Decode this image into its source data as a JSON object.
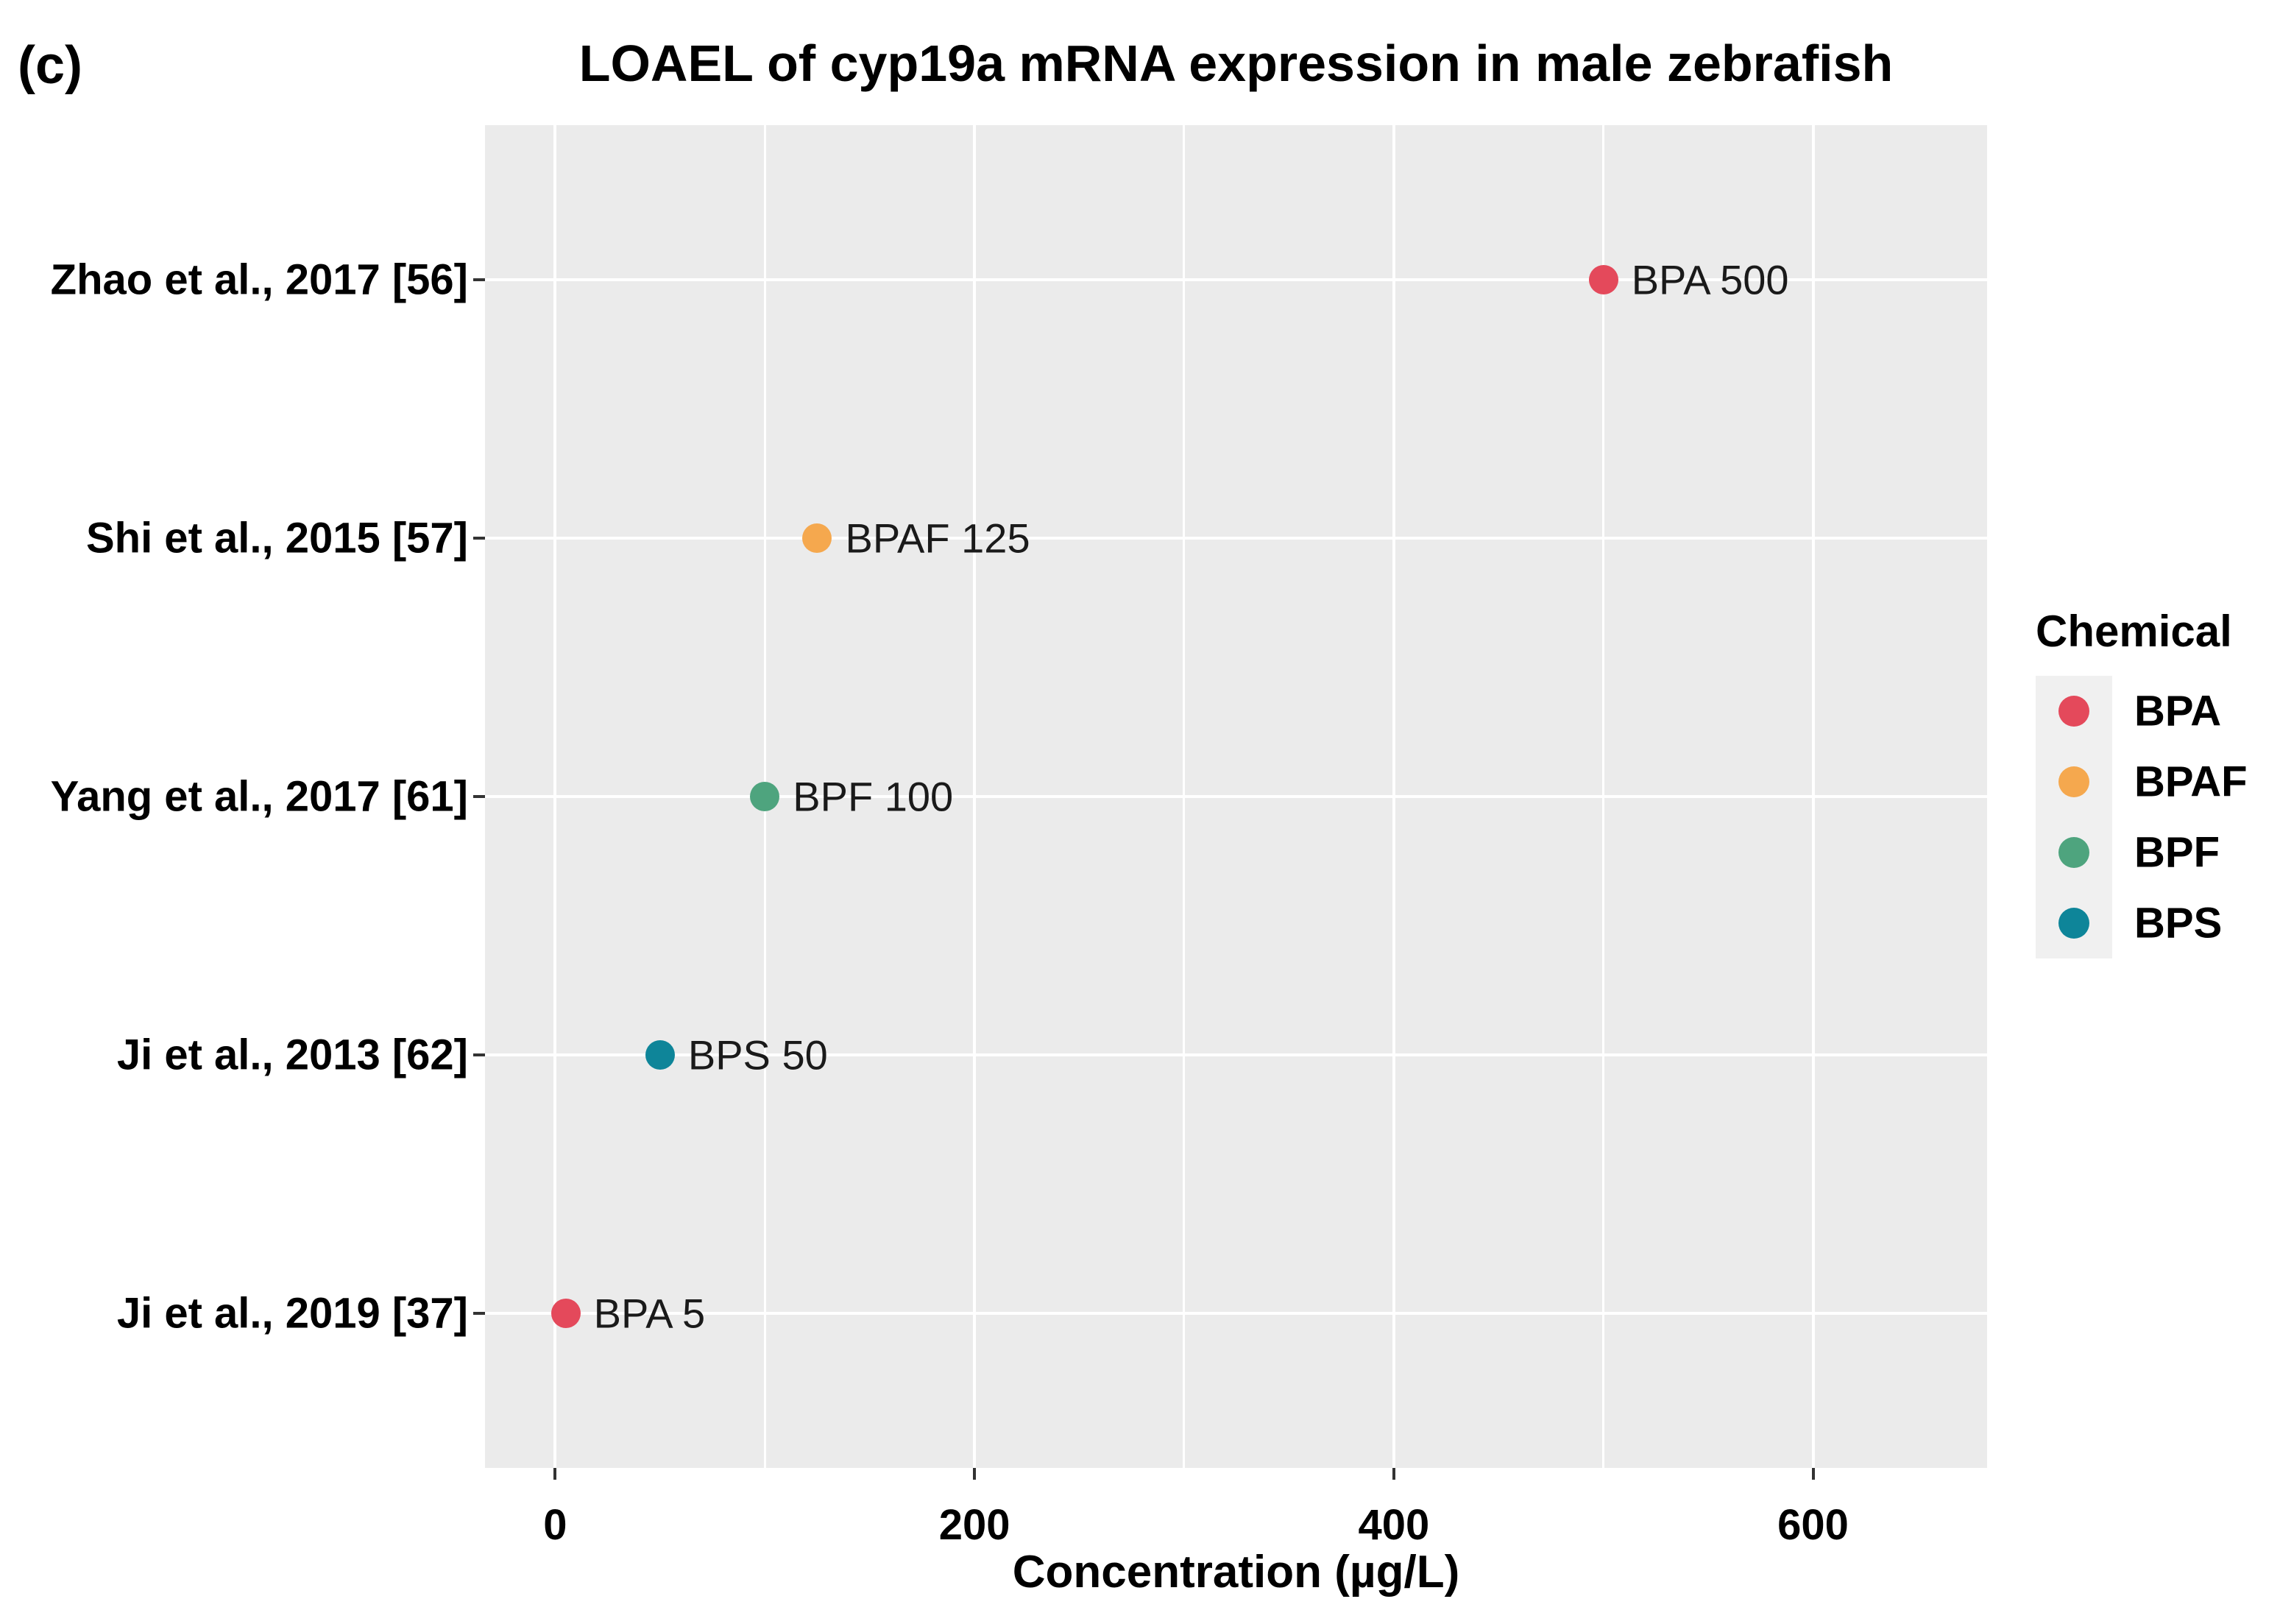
{
  "figure": {
    "panel_tag": "(c)"
  },
  "chart_data": {
    "type": "scatter",
    "title": "LOAEL of cyp19a mRNA expression in male zebrafish",
    "xlabel": "Concentration (µg/L)",
    "ylabel": "",
    "orientation": "horizontal-categorical",
    "categories": [
      "Zhao et al., 2017 [56]",
      "Shi et al., 2015 [57]",
      "Yang et al., 2017 [61]",
      "Ji et al., 2013 [62]",
      "Ji et al., 2019 [37]"
    ],
    "points": [
      {
        "category": "Zhao et al., 2017 [56]",
        "chemical": "BPA",
        "x": 500,
        "label": "BPA 500"
      },
      {
        "category": "Shi et al., 2015 [57]",
        "chemical": "BPAF",
        "x": 125,
        "label": "BPAF 125"
      },
      {
        "category": "Yang et al., 2017 [61]",
        "chemical": "BPF",
        "x": 100,
        "label": "BPF 100"
      },
      {
        "category": "Ji et al., 2013 [62]",
        "chemical": "BPS",
        "x": 50,
        "label": "BPS 50"
      },
      {
        "category": "Ji et al., 2019 [37]",
        "chemical": "BPA",
        "x": 5,
        "label": "BPA 5"
      }
    ],
    "x_ticks": [
      0,
      200,
      400,
      600
    ],
    "x_minor_gridlines": [
      100,
      300,
      500
    ],
    "xlim": [
      -33.5,
      683
    ],
    "grid": true,
    "gridline_color": "#FFFFFF",
    "panel_background": "#EBEBEB",
    "colors": {
      "BPA": "#E4495B",
      "BPAF": "#F5A84E",
      "BPF": "#4EA47E",
      "BPS": "#0E8599"
    },
    "legend": {
      "title": "Chemical",
      "position": "right",
      "items": [
        {
          "label": "BPA",
          "color": "#E4495B"
        },
        {
          "label": "BPAF",
          "color": "#F5A84E"
        },
        {
          "label": "BPF",
          "color": "#4EA47E"
        },
        {
          "label": "BPS",
          "color": "#0E8599"
        }
      ]
    }
  }
}
